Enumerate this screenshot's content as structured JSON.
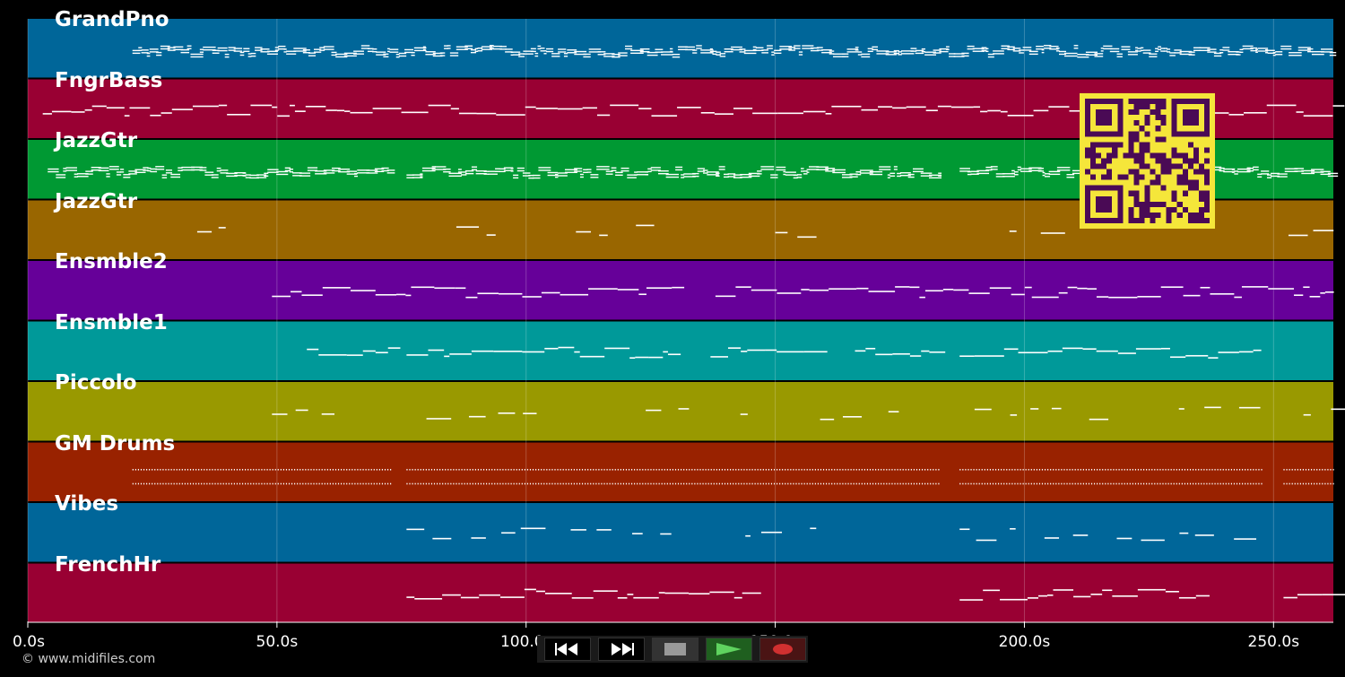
{
  "timeline": {
    "duration_s": 262,
    "ticks": [
      {
        "t": 0,
        "label": "0.0s"
      },
      {
        "t": 50,
        "label": "50.0s"
      },
      {
        "t": 100,
        "label": "100.0s"
      },
      {
        "t": 150,
        "label": "150.0s"
      },
      {
        "t": 200,
        "label": "200.0s"
      },
      {
        "t": 250,
        "label": "250.0s"
      }
    ]
  },
  "tracks": [
    {
      "name": "GrandPno",
      "color": "#006699",
      "style": "dense",
      "segments": [
        [
          21,
          262
        ]
      ]
    },
    {
      "name": "FngrBass",
      "color": "#990033",
      "style": "line",
      "segments": [
        [
          3,
          262
        ]
      ]
    },
    {
      "name": "JazzGtr",
      "color": "#009933",
      "style": "dense",
      "segments": [
        [
          4,
          73
        ],
        [
          76,
          183
        ],
        [
          187,
          262
        ]
      ]
    },
    {
      "name": "JazzGtr",
      "color": "#996600",
      "style": "sparse",
      "segments": [
        [
          34,
          39
        ],
        [
          86,
          96
        ],
        [
          110,
          128
        ],
        [
          150,
          157
        ],
        [
          197,
          208
        ],
        [
          253,
          258
        ]
      ]
    },
    {
      "name": "Ensmble2",
      "color": "#660099",
      "style": "line",
      "segments": [
        [
          49,
          131
        ],
        [
          138,
          262
        ]
      ]
    },
    {
      "name": "Ensmble1",
      "color": "#009999",
      "style": "line",
      "segments": [
        [
          56,
          73
        ],
        [
          76,
          131
        ],
        [
          137,
          156
        ],
        [
          166,
          183
        ],
        [
          187,
          247
        ]
      ]
    },
    {
      "name": "Piccolo",
      "color": "#999900",
      "style": "sparse",
      "segments": [
        [
          49,
          62
        ],
        [
          80,
          103
        ],
        [
          124,
          131
        ],
        [
          143,
          146
        ],
        [
          159,
          173
        ],
        [
          190,
          217
        ],
        [
          231,
          247
        ],
        [
          256,
          262
        ]
      ]
    },
    {
      "name": "GM Drums",
      "color": "#992200",
      "style": "drums",
      "segments": [
        [
          21,
          73
        ],
        [
          76,
          183
        ],
        [
          187,
          248
        ],
        [
          252,
          262
        ]
      ]
    },
    {
      "name": "Vibes",
      "color": "#006699",
      "style": "sparse",
      "segments": [
        [
          76,
          131
        ],
        [
          144,
          158
        ],
        [
          187,
          243
        ]
      ]
    },
    {
      "name": "FrenchHr",
      "color": "#990033",
      "style": "line",
      "segments": [
        [
          76,
          145
        ],
        [
          187,
          237
        ],
        [
          252,
          262
        ]
      ]
    }
  ],
  "copyright": "© www.midifiles.com",
  "transport": {
    "buttons": [
      {
        "name": "rewind-button",
        "icon": "rewind-icon"
      },
      {
        "name": "fast-forward-button",
        "icon": "fast-forward-icon"
      },
      {
        "name": "stop-button",
        "icon": "stop-icon"
      },
      {
        "name": "play-button",
        "icon": "play-icon"
      },
      {
        "name": "record-button",
        "icon": "record-icon"
      }
    ]
  },
  "qr": {
    "color_fg": "#4a0a55",
    "color_bg": "#f5e63a"
  }
}
